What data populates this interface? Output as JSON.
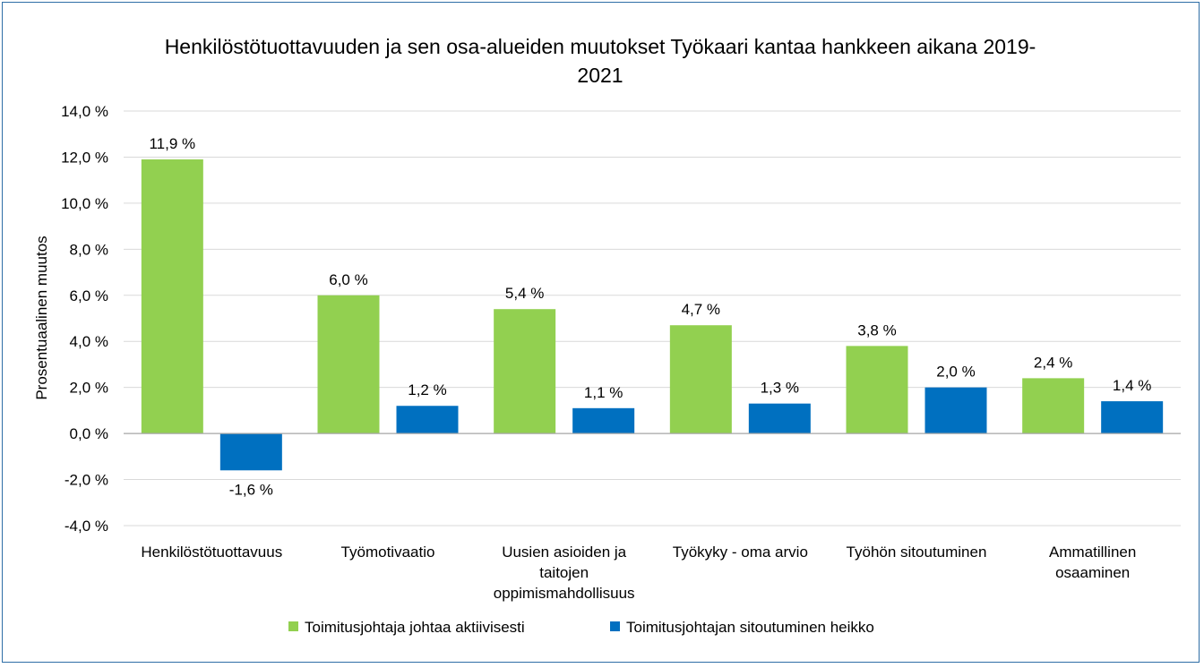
{
  "chart_data": {
    "type": "bar",
    "title": "Henkilöstötuottavuuden ja sen osa-alueiden muutokset Työkaari kantaa hankkeen aikana 2019-2021",
    "title_lines": [
      "Henkilöstötuottavuuden ja sen osa-alueiden muutokset Työkaari kantaa hankkeen aikana 2019-",
      "2021"
    ],
    "xlabel": "",
    "ylabel": "Prosentuaalinen muutos",
    "ylim": [
      -4.0,
      14.0
    ],
    "ytick_step": 2.0,
    "yticks": [
      "-4,0 %",
      "-2,0 %",
      "0,0 %",
      "2,0 %",
      "4,0 %",
      "6,0 %",
      "8,0 %",
      "10,0 %",
      "12,0 %",
      "14,0 %"
    ],
    "grid": true,
    "legend_position": "bottom",
    "categories": [
      "Henkilöstötuottavuus",
      "Työmotivaatio",
      "Uusien asioiden ja taitojen oppimismahdollisuus",
      "Työkyky - oma arvio",
      "Työhön sitoutuminen",
      "Ammatillinen osaaminen"
    ],
    "category_lines": [
      [
        "Henkilöstötuottavuus"
      ],
      [
        "Työmotivaatio"
      ],
      [
        "Uusien asioiden ja",
        "taitojen",
        "oppimismahdollisuus"
      ],
      [
        "Työkyky - oma arvio"
      ],
      [
        "Työhön sitoutuminen"
      ],
      [
        "Ammatillinen",
        "osaaminen"
      ]
    ],
    "series": [
      {
        "name": "Toimitusjohtaja johtaa aktiivisesti",
        "color": "#92d050",
        "values": [
          11.9,
          6.0,
          5.4,
          4.7,
          3.8,
          2.4
        ],
        "labels": [
          "11,9 %",
          "6,0 %",
          "5,4 %",
          "4,7 %",
          "3,8 %",
          "2,4 %"
        ]
      },
      {
        "name": "Toimitusjohtajan sitoutuminen heikko",
        "color": "#0070c0",
        "values": [
          -1.6,
          1.2,
          1.1,
          1.3,
          2.0,
          1.4
        ],
        "labels": [
          "-1,6 %",
          "1,2 %",
          "1,1 %",
          "1,3 %",
          "2,0 %",
          "1,4 %"
        ]
      }
    ]
  }
}
